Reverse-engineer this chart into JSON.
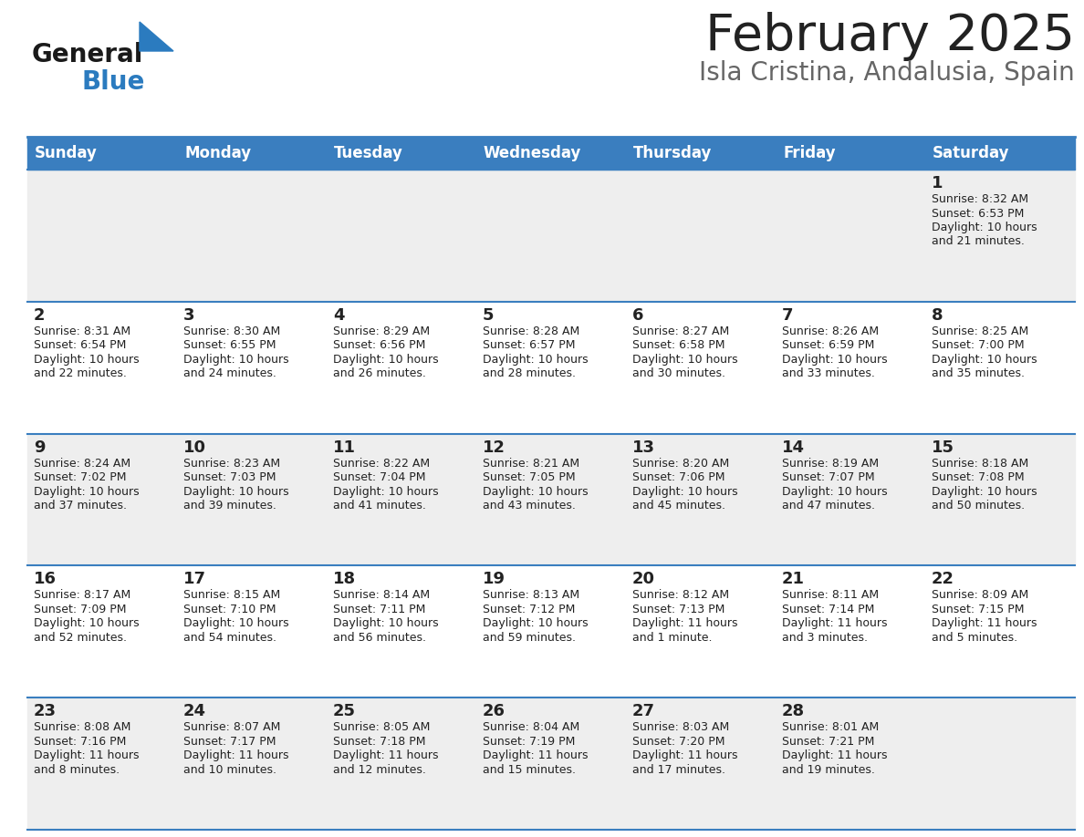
{
  "title": "February 2025",
  "subtitle": "Isla Cristina, Andalusia, Spain",
  "header_color": "#3a7ebf",
  "header_text_color": "#ffffff",
  "day_names": [
    "Sunday",
    "Monday",
    "Tuesday",
    "Wednesday",
    "Thursday",
    "Friday",
    "Saturday"
  ],
  "bg_color": "#ffffff",
  "cell_bg_even": "#eeeeee",
  "cell_bg_odd": "#ffffff",
  "row_line_color": "#3a7ebf",
  "text_color": "#222222",
  "title_color": "#222222",
  "subtitle_color": "#666666",
  "logo_general_color": "#1a1a1a",
  "logo_blue_color": "#2b7bbf",
  "weeks": [
    [
      {
        "day": null,
        "sunrise": null,
        "sunset": null,
        "daylight": null
      },
      {
        "day": null,
        "sunrise": null,
        "sunset": null,
        "daylight": null
      },
      {
        "day": null,
        "sunrise": null,
        "sunset": null,
        "daylight": null
      },
      {
        "day": null,
        "sunrise": null,
        "sunset": null,
        "daylight": null
      },
      {
        "day": null,
        "sunrise": null,
        "sunset": null,
        "daylight": null
      },
      {
        "day": null,
        "sunrise": null,
        "sunset": null,
        "daylight": null
      },
      {
        "day": 1,
        "sunrise": "8:32 AM",
        "sunset": "6:53 PM",
        "daylight": "10 hours\nand 21 minutes."
      }
    ],
    [
      {
        "day": 2,
        "sunrise": "8:31 AM",
        "sunset": "6:54 PM",
        "daylight": "10 hours\nand 22 minutes."
      },
      {
        "day": 3,
        "sunrise": "8:30 AM",
        "sunset": "6:55 PM",
        "daylight": "10 hours\nand 24 minutes."
      },
      {
        "day": 4,
        "sunrise": "8:29 AM",
        "sunset": "6:56 PM",
        "daylight": "10 hours\nand 26 minutes."
      },
      {
        "day": 5,
        "sunrise": "8:28 AM",
        "sunset": "6:57 PM",
        "daylight": "10 hours\nand 28 minutes."
      },
      {
        "day": 6,
        "sunrise": "8:27 AM",
        "sunset": "6:58 PM",
        "daylight": "10 hours\nand 30 minutes."
      },
      {
        "day": 7,
        "sunrise": "8:26 AM",
        "sunset": "6:59 PM",
        "daylight": "10 hours\nand 33 minutes."
      },
      {
        "day": 8,
        "sunrise": "8:25 AM",
        "sunset": "7:00 PM",
        "daylight": "10 hours\nand 35 minutes."
      }
    ],
    [
      {
        "day": 9,
        "sunrise": "8:24 AM",
        "sunset": "7:02 PM",
        "daylight": "10 hours\nand 37 minutes."
      },
      {
        "day": 10,
        "sunrise": "8:23 AM",
        "sunset": "7:03 PM",
        "daylight": "10 hours\nand 39 minutes."
      },
      {
        "day": 11,
        "sunrise": "8:22 AM",
        "sunset": "7:04 PM",
        "daylight": "10 hours\nand 41 minutes."
      },
      {
        "day": 12,
        "sunrise": "8:21 AM",
        "sunset": "7:05 PM",
        "daylight": "10 hours\nand 43 minutes."
      },
      {
        "day": 13,
        "sunrise": "8:20 AM",
        "sunset": "7:06 PM",
        "daylight": "10 hours\nand 45 minutes."
      },
      {
        "day": 14,
        "sunrise": "8:19 AM",
        "sunset": "7:07 PM",
        "daylight": "10 hours\nand 47 minutes."
      },
      {
        "day": 15,
        "sunrise": "8:18 AM",
        "sunset": "7:08 PM",
        "daylight": "10 hours\nand 50 minutes."
      }
    ],
    [
      {
        "day": 16,
        "sunrise": "8:17 AM",
        "sunset": "7:09 PM",
        "daylight": "10 hours\nand 52 minutes."
      },
      {
        "day": 17,
        "sunrise": "8:15 AM",
        "sunset": "7:10 PM",
        "daylight": "10 hours\nand 54 minutes."
      },
      {
        "day": 18,
        "sunrise": "8:14 AM",
        "sunset": "7:11 PM",
        "daylight": "10 hours\nand 56 minutes."
      },
      {
        "day": 19,
        "sunrise": "8:13 AM",
        "sunset": "7:12 PM",
        "daylight": "10 hours\nand 59 minutes."
      },
      {
        "day": 20,
        "sunrise": "8:12 AM",
        "sunset": "7:13 PM",
        "daylight": "11 hours\nand 1 minute."
      },
      {
        "day": 21,
        "sunrise": "8:11 AM",
        "sunset": "7:14 PM",
        "daylight": "11 hours\nand 3 minutes."
      },
      {
        "day": 22,
        "sunrise": "8:09 AM",
        "sunset": "7:15 PM",
        "daylight": "11 hours\nand 5 minutes."
      }
    ],
    [
      {
        "day": 23,
        "sunrise": "8:08 AM",
        "sunset": "7:16 PM",
        "daylight": "11 hours\nand 8 minutes."
      },
      {
        "day": 24,
        "sunrise": "8:07 AM",
        "sunset": "7:17 PM",
        "daylight": "11 hours\nand 10 minutes."
      },
      {
        "day": 25,
        "sunrise": "8:05 AM",
        "sunset": "7:18 PM",
        "daylight": "11 hours\nand 12 minutes."
      },
      {
        "day": 26,
        "sunrise": "8:04 AM",
        "sunset": "7:19 PM",
        "daylight": "11 hours\nand 15 minutes."
      },
      {
        "day": 27,
        "sunrise": "8:03 AM",
        "sunset": "7:20 PM",
        "daylight": "11 hours\nand 17 minutes."
      },
      {
        "day": 28,
        "sunrise": "8:01 AM",
        "sunset": "7:21 PM",
        "daylight": "11 hours\nand 19 minutes."
      },
      {
        "day": null,
        "sunrise": null,
        "sunset": null,
        "daylight": null
      }
    ]
  ],
  "figwidth": 11.88,
  "figheight": 9.18,
  "dpi": 100
}
